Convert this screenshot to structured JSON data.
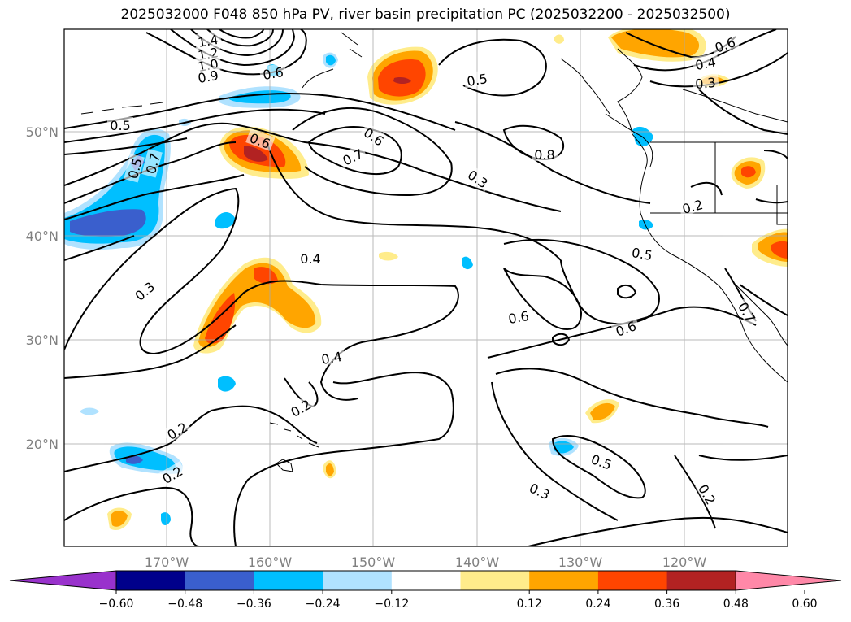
{
  "title": "2025032000 F048 850 hPa PV, river basin precipitation PC (2025032200 - 2025032500)",
  "lat_labels": [
    "50°N",
    "40°N",
    "30°N",
    "20°N"
  ],
  "lon_labels": [
    "170°W",
    "160°W",
    "150°W",
    "140°W",
    "130°W",
    "120°W"
  ],
  "contour_labels": [
    "1.4",
    "1.2",
    "1.0",
    "0.9",
    "0.6",
    "0.5",
    "0.5",
    "0.7",
    "0.6",
    "0.6",
    "0.7",
    "0.8",
    "0.3",
    "0.5",
    "0.2",
    "0.4",
    "0.3",
    "0.5",
    "0.6",
    "0.6",
    "0.4",
    "0.2",
    "0.2",
    "0.2",
    "0.5",
    "0.3",
    "0.2",
    "0.6",
    "0.4",
    "0.3",
    "0.7"
  ],
  "colorbar": {
    "colors": [
      "#9932CC",
      "#00008B",
      "#3A5FCD",
      "#00BFFF",
      "#B0E2FF",
      "#FFFFFF",
      "#FFEC8B",
      "#FFA500",
      "#FF4500",
      "#B22222",
      "#FF88A8"
    ],
    "ticks": [
      "−0.60",
      "−0.48",
      "−0.36",
      "−0.24",
      "−0.12",
      "0.12",
      "0.24",
      "0.36",
      "0.48",
      "0.60"
    ]
  }
}
